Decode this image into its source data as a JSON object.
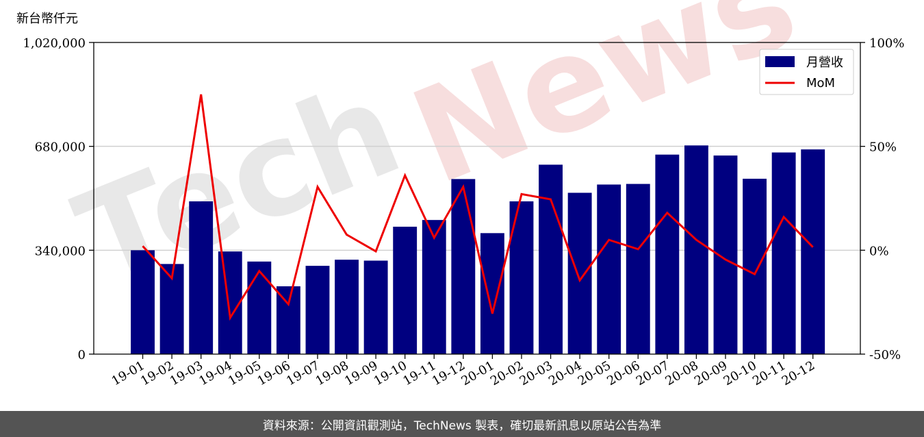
{
  "unit_label": "新台幣仟元",
  "footer_text": "資料來源：公開資訊觀測站，TechNews 製表，確切最新訊息以原站公告為準",
  "watermark": {
    "part1": "Tech",
    "part2": "News"
  },
  "colors": {
    "bar": "#000080",
    "line": "#ee0000",
    "grid": "#d0d0d0",
    "footer_bg": "#545454"
  },
  "chart_data": {
    "type": "bar",
    "categories": [
      "19-01",
      "19-02",
      "19-03",
      "19-04",
      "19-05",
      "19-06",
      "19-07",
      "19-08",
      "19-09",
      "19-10",
      "19-11",
      "19-12",
      "20-01",
      "20-02",
      "20-03",
      "20-04",
      "20-05",
      "20-06",
      "20-07",
      "20-08",
      "20-09",
      "20-10",
      "20-11",
      "20-12"
    ],
    "series": [
      {
        "name": "月營收",
        "type": "bar",
        "axis": "left",
        "values": [
          340000,
          295000,
          500000,
          336000,
          303000,
          222000,
          289000,
          309000,
          306000,
          417000,
          439000,
          573000,
          396000,
          500000,
          620000,
          528000,
          555000,
          557000,
          653000,
          683000,
          650000,
          574000,
          660000,
          670000
        ]
      },
      {
        "name": "MoM",
        "type": "line",
        "axis": "right",
        "values": [
          2,
          -13.5,
          75,
          -32.5,
          -10,
          -26,
          30.5,
          7.5,
          -0.5,
          36,
          6,
          30.5,
          -30.5,
          27,
          24.5,
          -14.5,
          5,
          0.5,
          18,
          5,
          -4.5,
          -11.5,
          16,
          1.5
        ]
      }
    ],
    "y_left": {
      "ylim": [
        0,
        1020000
      ],
      "ticks": [
        0,
        340000,
        680000,
        1020000
      ],
      "tick_labels": [
        "0",
        "340,000",
        "680,000",
        "1,020,000"
      ]
    },
    "y_right": {
      "ylim": [
        -50,
        100
      ],
      "ticks": [
        -50,
        0,
        50,
        100
      ],
      "tick_labels": [
        "-50%",
        "0%",
        "50%",
        "100%"
      ]
    },
    "grid": true,
    "legend": "top-right",
    "title": "",
    "xlabel": "",
    "ylabel": ""
  }
}
